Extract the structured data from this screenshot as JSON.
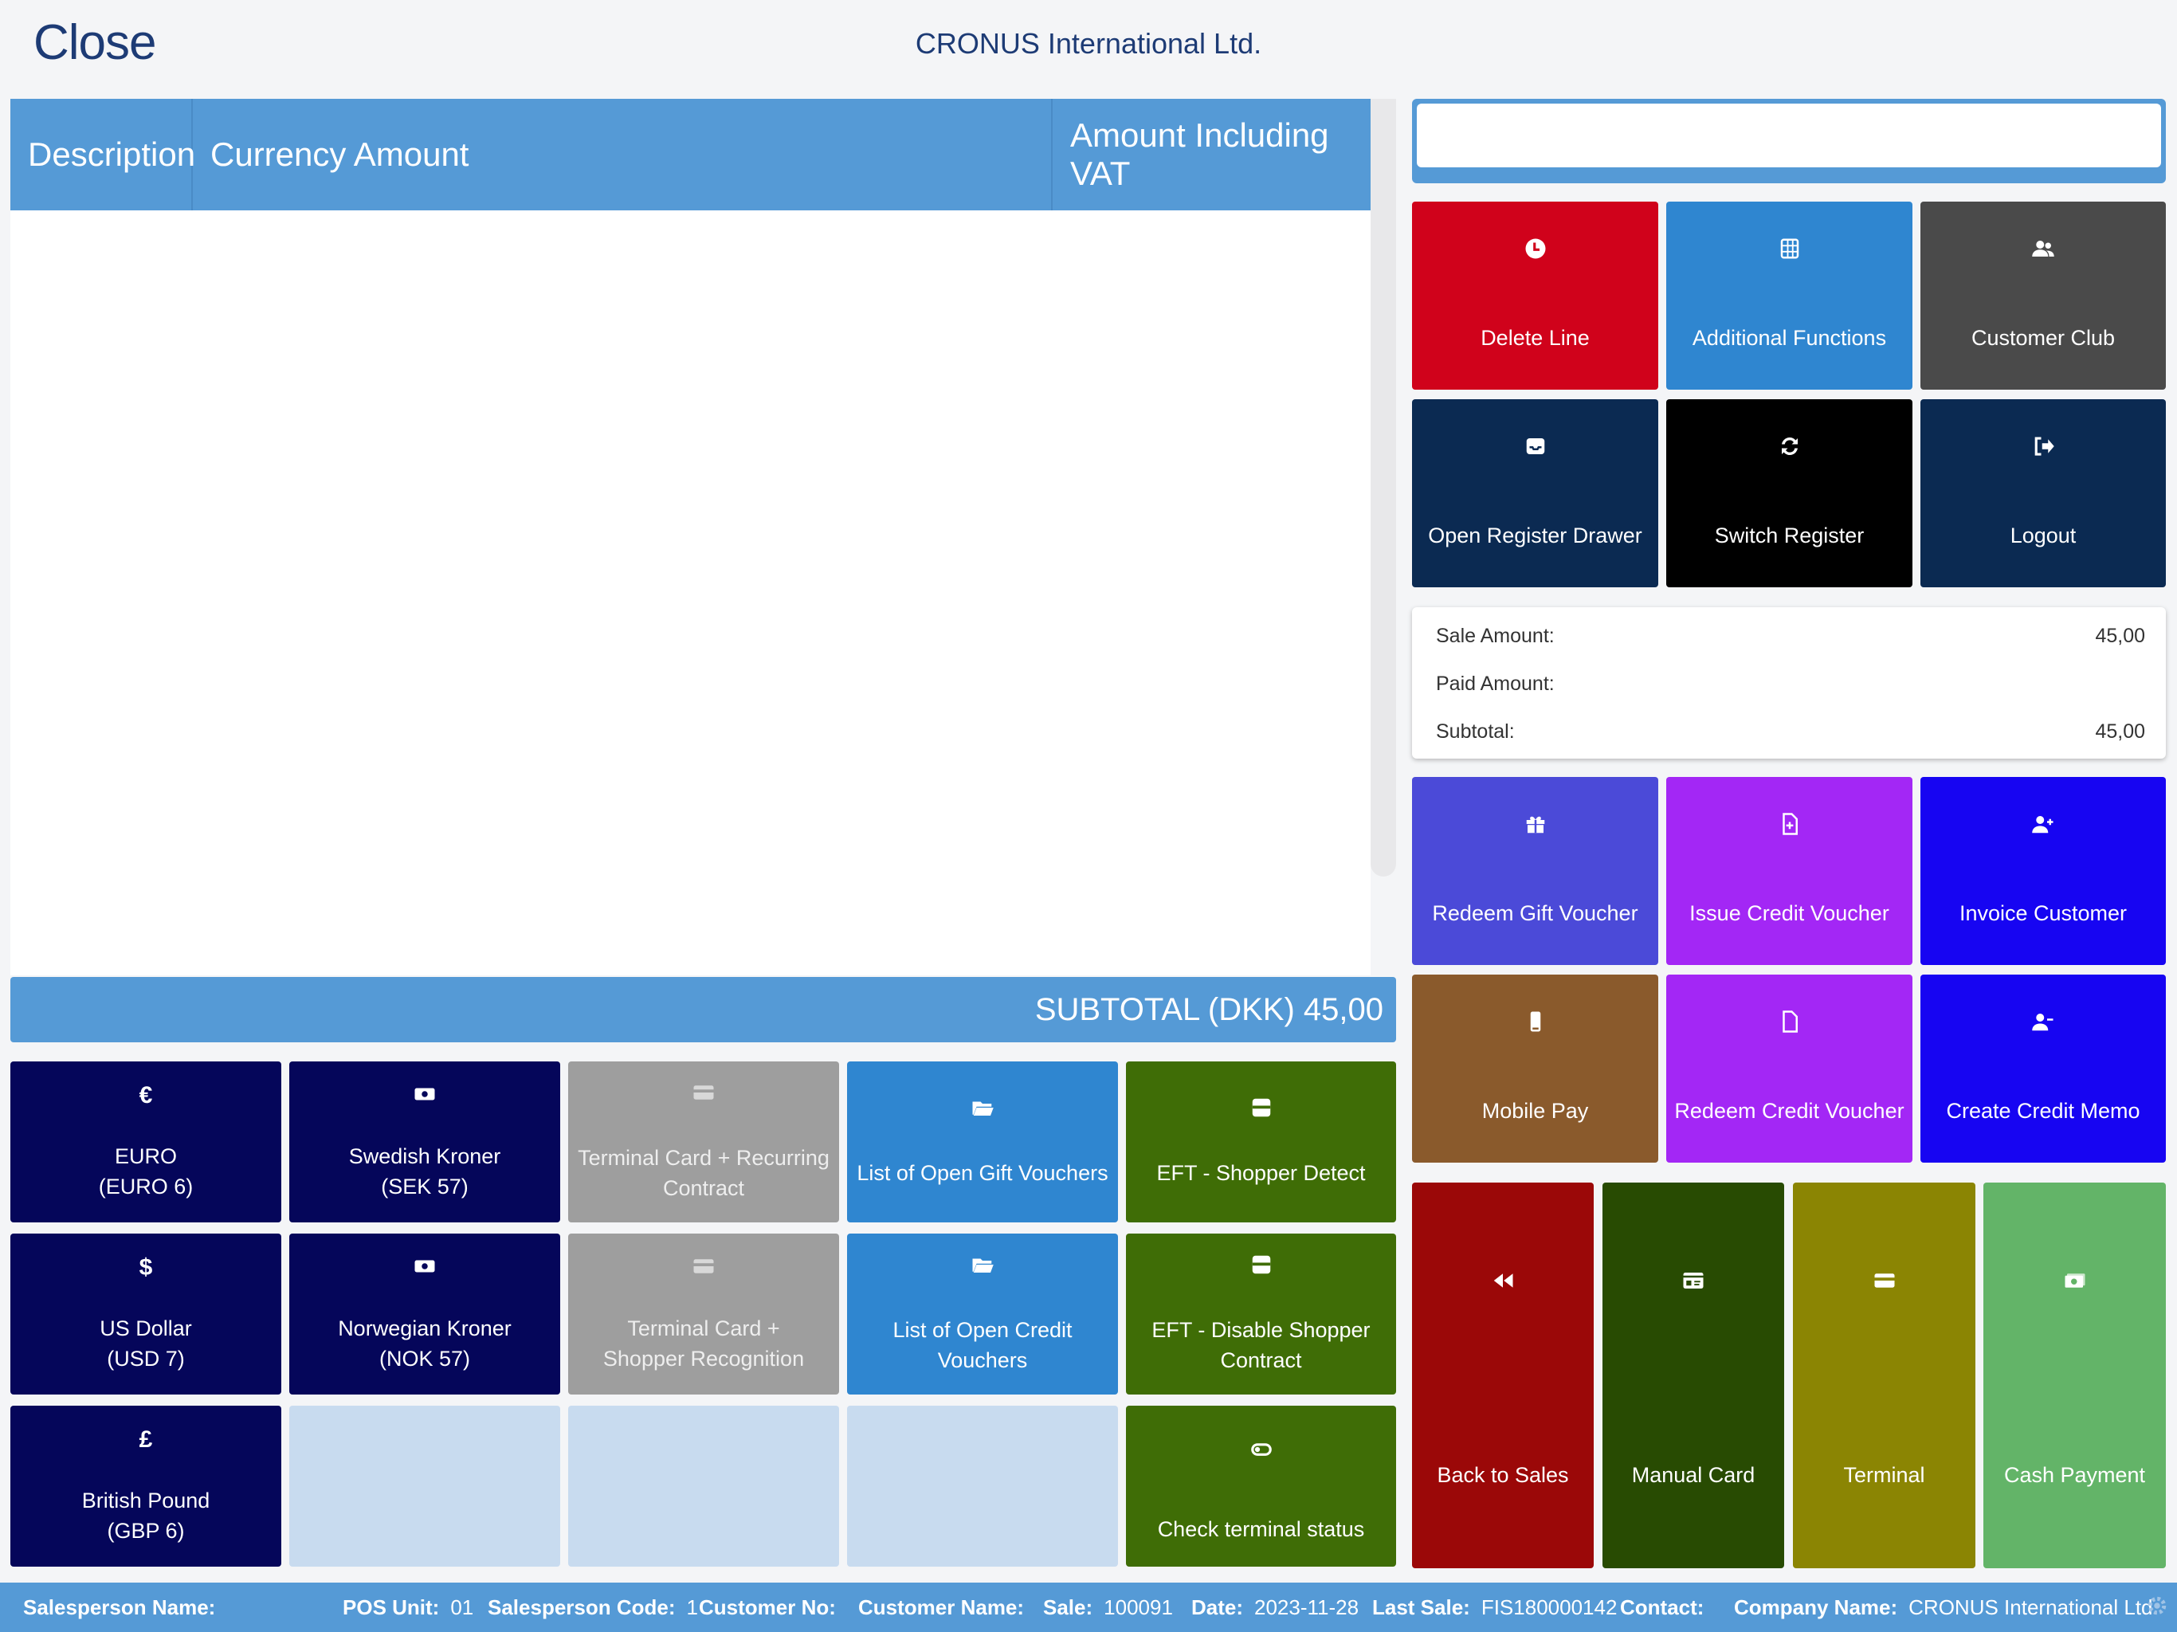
{
  "header": {
    "close_label": "Close",
    "company_title": "CRONUS International Ltd."
  },
  "grid": {
    "columns": [
      "Description",
      "Currency Amount",
      "Amount Including VAT"
    ],
    "rows": []
  },
  "subtotal_bar": "SUBTOTAL (DKK) 45,00",
  "payment_tiles": [
    {
      "line1": "EURO",
      "line2": "(EURO 6)",
      "icon": "euro-icon",
      "color": "#05065a"
    },
    {
      "line1": "Swedish Kroner",
      "line2": "(SEK 57)",
      "icon": "banknote-icon",
      "color": "#05065a"
    },
    {
      "line1": "Terminal Card + Recurring Contract",
      "icon": "credit-card-icon",
      "color": "#9e9e9e"
    },
    {
      "line1": "List of Open Gift Vouchers",
      "icon": "folder-open-icon",
      "color": "#2f86d0"
    },
    {
      "line1": "EFT - Shopper Detect",
      "icon": "card-reader-icon",
      "color": "#3f6d06"
    },
    {
      "line1": "US Dollar",
      "line2": "(USD 7)",
      "icon": "dollar-icon",
      "color": "#05065a"
    },
    {
      "line1": "Norwegian Kroner",
      "line2": "(NOK 57)",
      "icon": "banknote-icon",
      "color": "#05065a"
    },
    {
      "line1": "Terminal Card + Shopper Recognition",
      "icon": "credit-card-icon",
      "color": "#9e9e9e"
    },
    {
      "line1": "List of Open Credit Vouchers",
      "icon": "folder-open-icon",
      "color": "#2f86d0"
    },
    {
      "line1": "EFT - Disable Shopper Contract",
      "icon": "card-reader-icon",
      "color": "#3f6d06"
    },
    {
      "line1": "British Pound",
      "line2": "(GBP 6)",
      "icon": "pound-icon",
      "color": "#05065a"
    },
    {
      "line1": "Check terminal status",
      "icon": "toggle-icon",
      "color": "#3f6d06"
    }
  ],
  "search": {
    "value": "",
    "placeholder": ""
  },
  "function_buttons": [
    {
      "label": "Delete Line",
      "icon": "clock-icon",
      "color": "#d0021b"
    },
    {
      "label": "Additional Functions",
      "icon": "grid-icon",
      "color": "#2f86d0"
    },
    {
      "label": "Customer Club",
      "icon": "users-icon",
      "color": "#4a4a4a"
    },
    {
      "label": "Open Register Drawer",
      "icon": "inbox-icon",
      "color": "#0b2a52"
    },
    {
      "label": "Switch Register",
      "icon": "refresh-icon",
      "color": "#000000"
    },
    {
      "label": "Logout",
      "icon": "logout-icon",
      "color": "#0b2a52"
    }
  ],
  "totals": {
    "sale_label": "Sale Amount:",
    "sale_value": "45,00",
    "paid_label": "Paid Amount:",
    "paid_value": "",
    "subtotal_label": "Subtotal:",
    "subtotal_value": "45,00"
  },
  "voucher_buttons": [
    {
      "label": "Redeem Gift Voucher",
      "icon": "gift-icon",
      "color": "#4b4ad8"
    },
    {
      "label": "Issue Credit Voucher",
      "icon": "file-plus-icon",
      "color": "#a327f5"
    },
    {
      "label": "Invoice Customer",
      "icon": "user-plus-icon",
      "color": "#1705f2"
    },
    {
      "label": "Mobile Pay",
      "icon": "mobile-icon",
      "color": "#8a5a2c"
    },
    {
      "label": "Redeem Credit Voucher",
      "icon": "file-icon",
      "color": "#a327f5"
    },
    {
      "label": "Create Credit Memo",
      "icon": "user-minus-icon",
      "color": "#1705f2"
    }
  ],
  "bottom_buttons": [
    {
      "label": "Back to Sales",
      "icon": "rewind-icon",
      "color": "#9b0808"
    },
    {
      "label": "Manual Card",
      "icon": "id-card-icon",
      "color": "#284b02"
    },
    {
      "label": "Terminal",
      "icon": "credit-card-icon",
      "color": "#8b8503"
    },
    {
      "label": "Cash Payment",
      "icon": "cash-icon",
      "color": "#63b468"
    }
  ],
  "statusbar": {
    "salesperson_name_label": "Salesperson Name:",
    "salesperson_name_value": "",
    "pos_unit_label": "POS Unit:",
    "pos_unit_value": "01",
    "salesperson_code_label": "Salesperson Code:",
    "salesperson_code_value": "1",
    "customer_no_label": "Customer No:",
    "customer_no_value": "",
    "customer_name_label": "Customer Name:",
    "customer_name_value": "",
    "sale_label": "Sale:",
    "sale_value": "100091",
    "date_label": "Date:",
    "date_value": "2023-11-28",
    "last_sale_label": "Last Sale:",
    "last_sale_value": "FIS180000142",
    "contact_label": "Contact:",
    "contact_value": "",
    "company_name_label": "Company Name:",
    "company_name_value": "CRONUS International Ltd."
  }
}
